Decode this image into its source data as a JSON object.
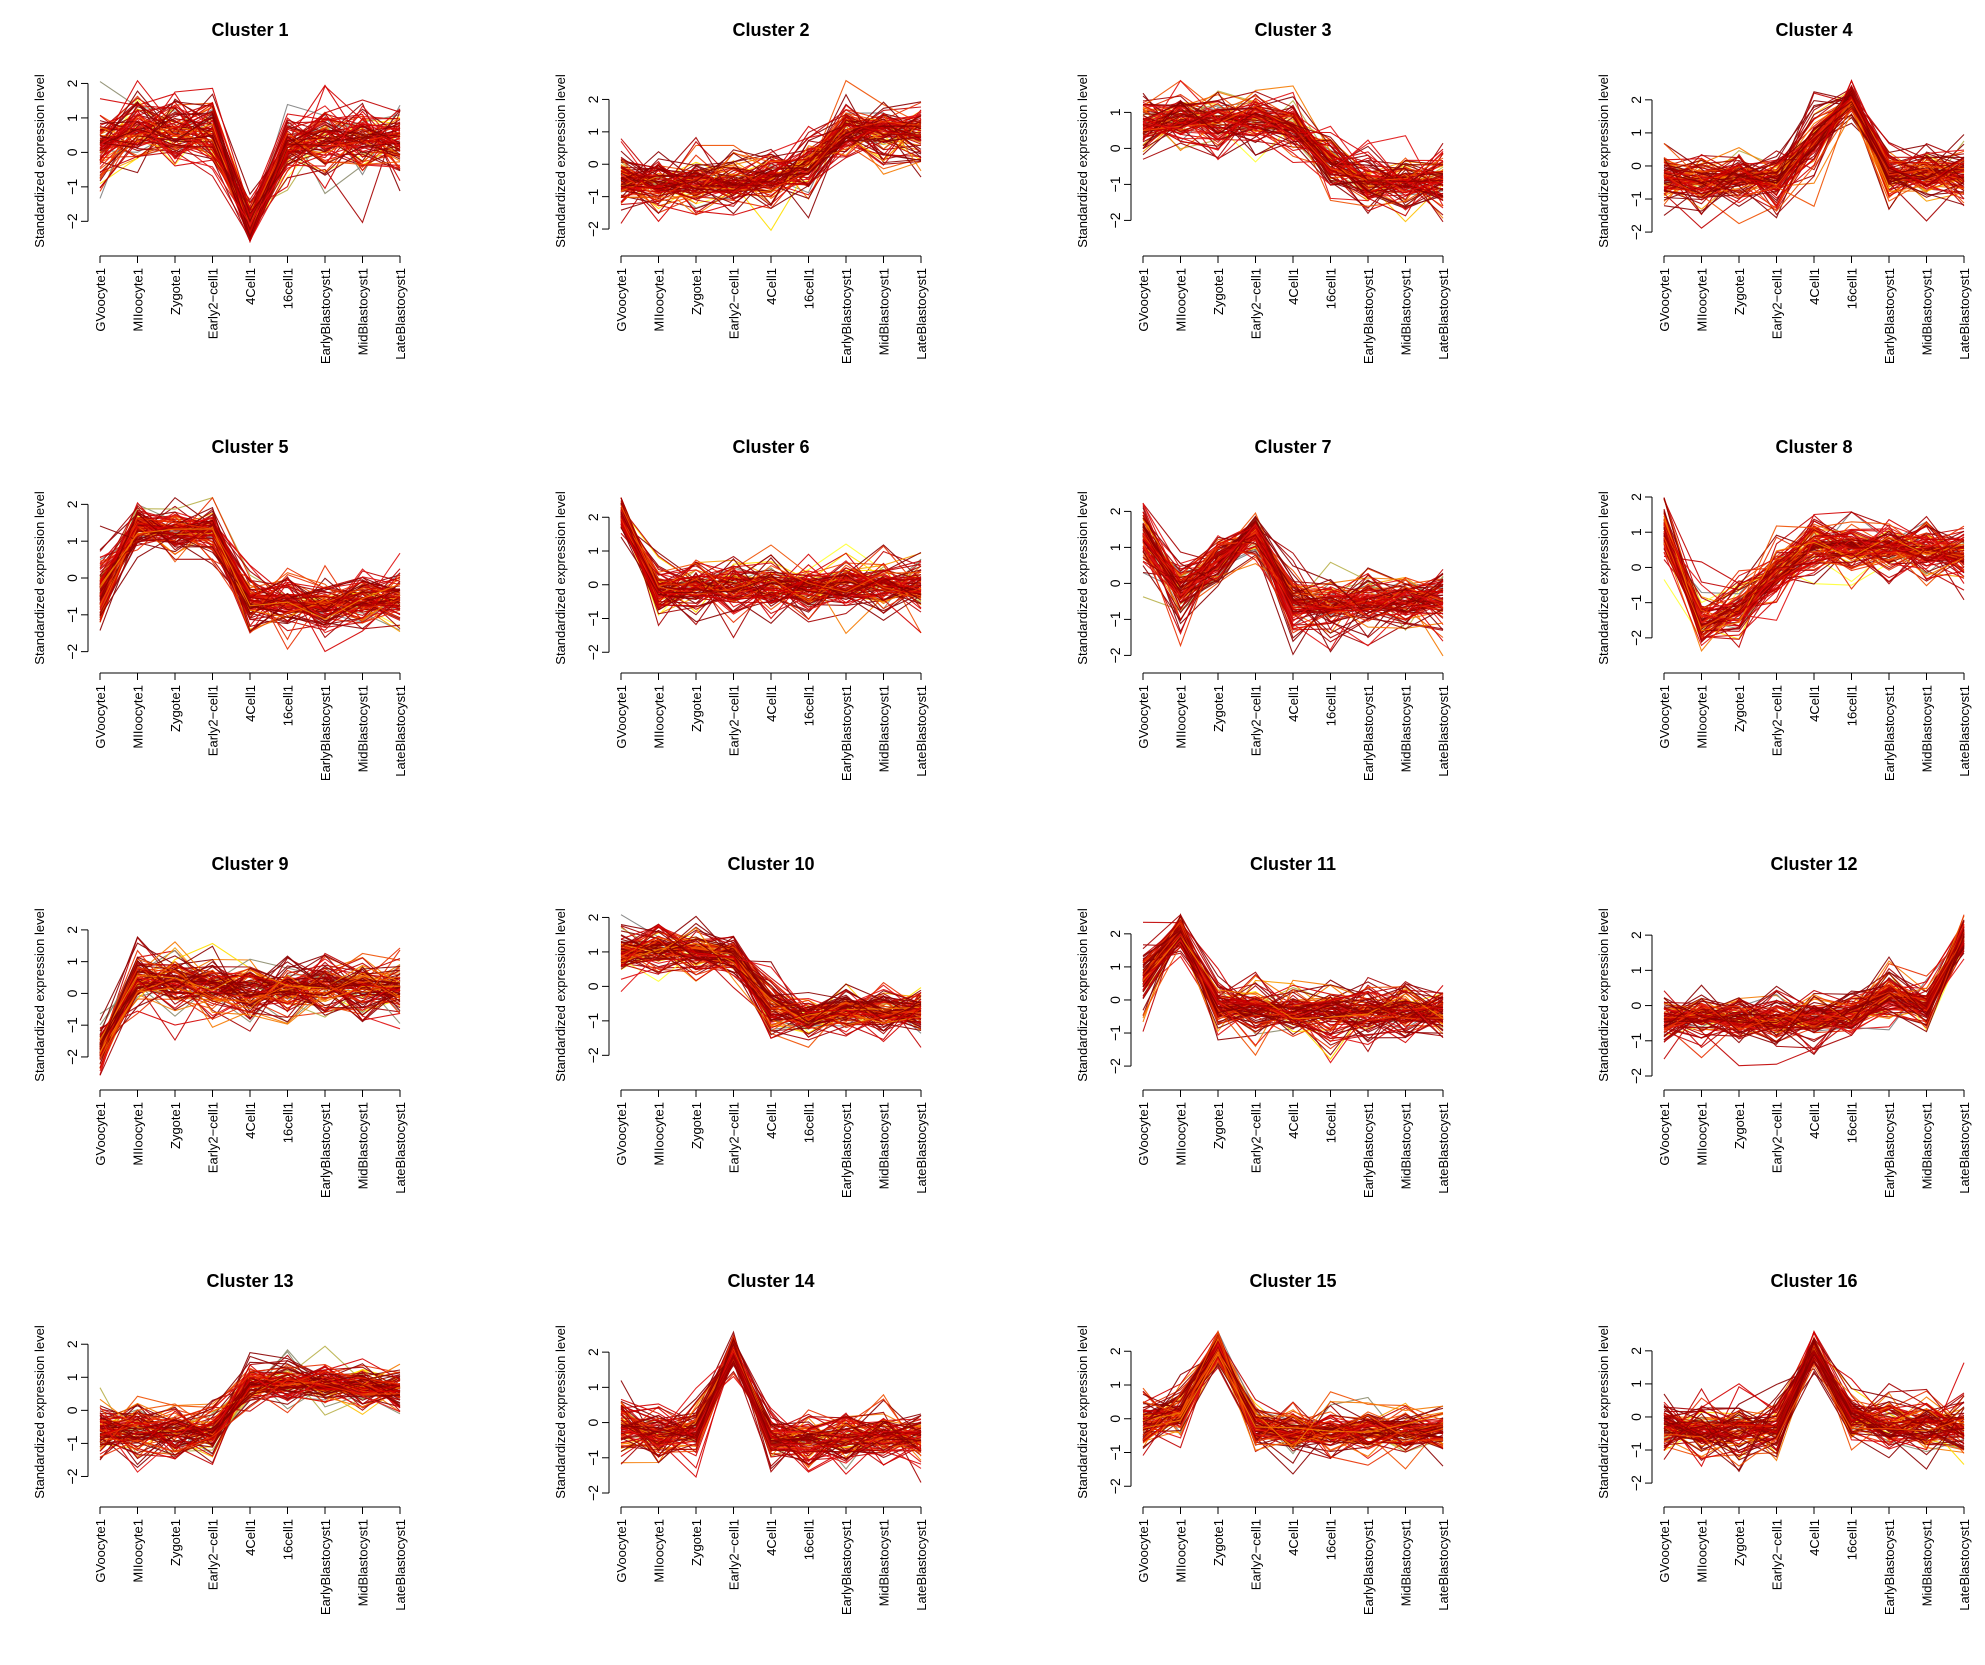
{
  "chart_data": {
    "type": "line",
    "ylabel": "Standardized expression level",
    "x": [
      "GVoocyte1",
      "MIIoocyte1",
      "Zygote1",
      "Early2−cell1",
      "4Cell1",
      "16cell1",
      "EarlyBlastocyst1",
      "MidBlastocyst1",
      "LateBlastocyst1"
    ],
    "yticks": [
      -2,
      -1,
      0,
      1,
      2
    ],
    "palette": [
      "#8b0000",
      "#a50000",
      "#c00000",
      "#d40000",
      "#e01010",
      "#e83000",
      "#f05000",
      "#f57a00",
      "#fa9d00",
      "#ffc000",
      "#ffdf00",
      "#ffff33",
      "#b8b04a",
      "#8c8c6e",
      "#7f7f7f"
    ],
    "clusters": [
      {
        "title": "Cluster 1",
        "ylim": [
          -2.6,
          2.1
        ],
        "profile": [
          0.2,
          0.6,
          0.5,
          0.6,
          -2.1,
          0.2,
          0.4,
          0.4,
          0.4
        ],
        "spread": [
          0.7,
          0.6,
          0.6,
          0.6,
          0.4,
          0.6,
          0.6,
          0.6,
          0.6
        ]
      },
      {
        "title": "Cluster 2",
        "ylim": [
          -2.4,
          2.6
        ],
        "profile": [
          -0.5,
          -0.6,
          -0.6,
          -0.6,
          -0.5,
          0.0,
          1.0,
          1.0,
          1.0
        ],
        "spread": [
          0.5,
          0.5,
          0.5,
          0.5,
          0.5,
          0.6,
          0.6,
          0.6,
          0.6
        ]
      },
      {
        "title": "Cluster 3",
        "ylim": [
          -2.6,
          1.9
        ],
        "profile": [
          0.7,
          0.9,
          0.8,
          0.8,
          0.6,
          -0.4,
          -0.9,
          -0.9,
          -0.9
        ],
        "spread": [
          0.5,
          0.5,
          0.5,
          0.5,
          0.5,
          0.5,
          0.5,
          0.5,
          0.5
        ]
      },
      {
        "title": "Cluster 4",
        "ylim": [
          -2.3,
          2.6
        ],
        "profile": [
          -0.4,
          -0.5,
          -0.4,
          -0.4,
          0.8,
          2.0,
          -0.2,
          -0.2,
          -0.3
        ],
        "spread": [
          0.5,
          0.5,
          0.5,
          0.5,
          0.6,
          0.3,
          0.5,
          0.5,
          0.5
        ]
      },
      {
        "title": "Cluster 5",
        "ylim": [
          -2.2,
          2.2
        ],
        "profile": [
          -0.3,
          1.4,
          1.3,
          1.3,
          -0.6,
          -0.7,
          -0.7,
          -0.6,
          -0.6
        ],
        "spread": [
          0.6,
          0.4,
          0.4,
          0.4,
          0.5,
          0.5,
          0.5,
          0.5,
          0.5
        ]
      },
      {
        "title": "Cluster 6",
        "ylim": [
          -2.2,
          2.6
        ],
        "profile": [
          2.1,
          -0.2,
          -0.1,
          -0.1,
          -0.1,
          -0.1,
          0.0,
          -0.1,
          -0.1
        ],
        "spread": [
          0.3,
          0.5,
          0.5,
          0.5,
          0.5,
          0.5,
          0.5,
          0.5,
          0.5
        ]
      },
      {
        "title": "Cluster 7",
        "ylim": [
          -2.1,
          2.4
        ],
        "profile": [
          1.3,
          -0.2,
          0.6,
          1.4,
          -0.5,
          -0.6,
          -0.5,
          -0.5,
          -0.5
        ],
        "spread": [
          0.5,
          0.6,
          0.5,
          0.4,
          0.5,
          0.5,
          0.5,
          0.5,
          0.5
        ]
      },
      {
        "title": "Cluster 8",
        "ylim": [
          -2.6,
          2.0
        ],
        "profile": [
          1.1,
          -1.6,
          -1.2,
          -0.2,
          0.6,
          0.5,
          0.5,
          0.5,
          0.4
        ],
        "spread": [
          0.5,
          0.5,
          0.5,
          0.5,
          0.5,
          0.5,
          0.5,
          0.5,
          0.5
        ]
      },
      {
        "title": "Cluster 9",
        "ylim": [
          -2.6,
          2.5
        ],
        "profile": [
          -1.7,
          0.4,
          0.3,
          0.2,
          0.1,
          0.1,
          0.2,
          0.2,
          0.2
        ],
        "spread": [
          0.4,
          0.6,
          0.6,
          0.6,
          0.6,
          0.6,
          0.6,
          0.6,
          0.6
        ]
      },
      {
        "title": "Cluster 10",
        "ylim": [
          -2.6,
          2.1
        ],
        "profile": [
          1.0,
          1.1,
          1.0,
          0.9,
          -0.6,
          -0.9,
          -0.7,
          -0.7,
          -0.7
        ],
        "spread": [
          0.4,
          0.4,
          0.4,
          0.4,
          0.5,
          0.4,
          0.4,
          0.4,
          0.4
        ]
      },
      {
        "title": "Cluster 11",
        "ylim": [
          -2.3,
          2.6
        ],
        "profile": [
          0.6,
          2.0,
          -0.2,
          -0.3,
          -0.3,
          -0.3,
          -0.3,
          -0.3,
          -0.4
        ],
        "spread": [
          0.6,
          0.3,
          0.5,
          0.5,
          0.5,
          0.5,
          0.5,
          0.5,
          0.5
        ]
      },
      {
        "title": "Cluster 12",
        "ylim": [
          -2.0,
          2.6
        ],
        "profile": [
          -0.4,
          -0.4,
          -0.4,
          -0.4,
          -0.4,
          -0.3,
          0.3,
          0.0,
          2.0
        ],
        "spread": [
          0.4,
          0.4,
          0.4,
          0.4,
          0.4,
          0.4,
          0.5,
          0.4,
          0.3
        ]
      },
      {
        "title": "Cluster 13",
        "ylim": [
          -2.5,
          2.4
        ],
        "profile": [
          -0.6,
          -0.6,
          -0.6,
          -0.6,
          0.8,
          0.8,
          0.7,
          0.7,
          0.6
        ],
        "spread": [
          0.5,
          0.5,
          0.5,
          0.5,
          0.4,
          0.4,
          0.4,
          0.4,
          0.4
        ]
      },
      {
        "title": "Cluster 14",
        "ylim": [
          -2.0,
          2.6
        ],
        "profile": [
          -0.1,
          -0.3,
          -0.2,
          2.0,
          -0.4,
          -0.5,
          -0.4,
          -0.4,
          -0.4
        ],
        "spread": [
          0.5,
          0.5,
          0.5,
          0.3,
          0.5,
          0.5,
          0.5,
          0.5,
          0.5
        ]
      },
      {
        "title": "Cluster 15",
        "ylim": [
          -2.2,
          2.6
        ],
        "profile": [
          -0.2,
          0.2,
          2.1,
          -0.2,
          -0.4,
          -0.4,
          -0.4,
          -0.4,
          -0.4
        ],
        "spread": [
          0.5,
          0.5,
          0.3,
          0.4,
          0.4,
          0.4,
          0.4,
          0.4,
          0.4
        ]
      },
      {
        "title": "Cluster 16",
        "ylim": [
          -2.3,
          2.6
        ],
        "profile": [
          -0.3,
          -0.4,
          -0.4,
          -0.3,
          2.0,
          0.0,
          -0.2,
          -0.3,
          -0.3
        ],
        "spread": [
          0.5,
          0.5,
          0.5,
          0.5,
          0.3,
          0.5,
          0.5,
          0.5,
          0.5
        ]
      }
    ]
  }
}
